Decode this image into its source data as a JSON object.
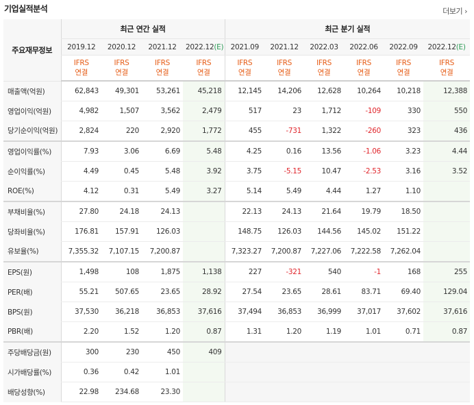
{
  "title": "기업실적분석",
  "more_label": "더보기",
  "more_icon": "chevron-right-icon",
  "corner_label": "주요재무정보",
  "group_annual": "최근 연간 실적",
  "group_quarter": "최근 분기 실적",
  "periods": [
    "2019.12",
    "2020.12",
    "2021.12",
    "2022.12(E)",
    "2021.09",
    "2021.12",
    "2022.03",
    "2022.06",
    "2022.09",
    "2022.12(E)"
  ],
  "standard_line1": "IFRS",
  "standard_line2": "연결",
  "colors": {
    "negative": "#e0262c",
    "accent": "#e65b14",
    "estimate_bg": "#f3f9f1"
  },
  "rows": [
    {
      "label": "매출액(억원)",
      "values": [
        "62,843",
        "49,301",
        "53,261",
        "45,218",
        "12,145",
        "14,206",
        "12,628",
        "10,264",
        "10,218",
        "12,388"
      ]
    },
    {
      "label": "영업이익(억원)",
      "values": [
        "4,982",
        "1,507",
        "3,562",
        "2,479",
        "517",
        "23",
        "1,712",
        "-109",
        "330",
        "550"
      ]
    },
    {
      "label": "당기순이익(억원)",
      "values": [
        "2,824",
        "220",
        "2,920",
        "1,772",
        "455",
        "-731",
        "1,322",
        "-260",
        "323",
        "436"
      ]
    },
    {
      "label": "영업이익률(%)",
      "values": [
        "7.93",
        "3.06",
        "6.69",
        "5.48",
        "4.25",
        "0.16",
        "13.56",
        "-1.06",
        "3.23",
        "4.44"
      ]
    },
    {
      "label": "순이익률(%)",
      "values": [
        "4.49",
        "0.45",
        "5.48",
        "3.92",
        "3.75",
        "-5.15",
        "10.47",
        "-2.53",
        "3.16",
        "3.52"
      ]
    },
    {
      "label": "ROE(%)",
      "values": [
        "4.12",
        "0.31",
        "5.49",
        "3.27",
        "5.14",
        "5.49",
        "4.44",
        "1.27",
        "1.10",
        ""
      ]
    },
    {
      "label": "부채비율(%)",
      "values": [
        "27.80",
        "24.18",
        "24.13",
        "",
        "22.13",
        "24.13",
        "21.64",
        "19.79",
        "18.50",
        ""
      ]
    },
    {
      "label": "당좌비율(%)",
      "values": [
        "176.81",
        "157.91",
        "126.03",
        "",
        "148.75",
        "126.03",
        "144.56",
        "145.02",
        "151.22",
        ""
      ]
    },
    {
      "label": "유보율(%)",
      "values": [
        "7,355.32",
        "7,107.15",
        "7,200.87",
        "",
        "7,323.27",
        "7,200.87",
        "7,227.06",
        "7,222.58",
        "7,262.04",
        ""
      ]
    },
    {
      "label": "EPS(원)",
      "values": [
        "1,498",
        "108",
        "1,875",
        "1,138",
        "227",
        "-321",
        "540",
        "-1",
        "168",
        "255"
      ]
    },
    {
      "label": "PER(배)",
      "values": [
        "55.21",
        "507.65",
        "23.65",
        "28.92",
        "27.54",
        "23.65",
        "28.61",
        "83.71",
        "69.40",
        "129.04"
      ]
    },
    {
      "label": "BPS(원)",
      "values": [
        "37,530",
        "36,218",
        "36,853",
        "37,616",
        "37,494",
        "36,853",
        "36,999",
        "37,017",
        "37,602",
        "37,616"
      ]
    },
    {
      "label": "PBR(배)",
      "values": [
        "2.20",
        "1.52",
        "1.20",
        "0.87",
        "1.31",
        "1.20",
        "1.19",
        "1.01",
        "0.71",
        "0.87"
      ]
    },
    {
      "label": "주당배당금(원)",
      "values": [
        "300",
        "230",
        "450",
        "409",
        "",
        "",
        "",
        "",
        "",
        ""
      ]
    },
    {
      "label": "시가배당률(%)",
      "values": [
        "0.36",
        "0.42",
        "1.01",
        "",
        "",
        "",
        "",
        "",
        "",
        ""
      ]
    },
    {
      "label": "배당성향(%)",
      "values": [
        "22.98",
        "234.68",
        "23.30",
        "",
        "",
        "",
        "",
        "",
        "",
        ""
      ]
    }
  ]
}
